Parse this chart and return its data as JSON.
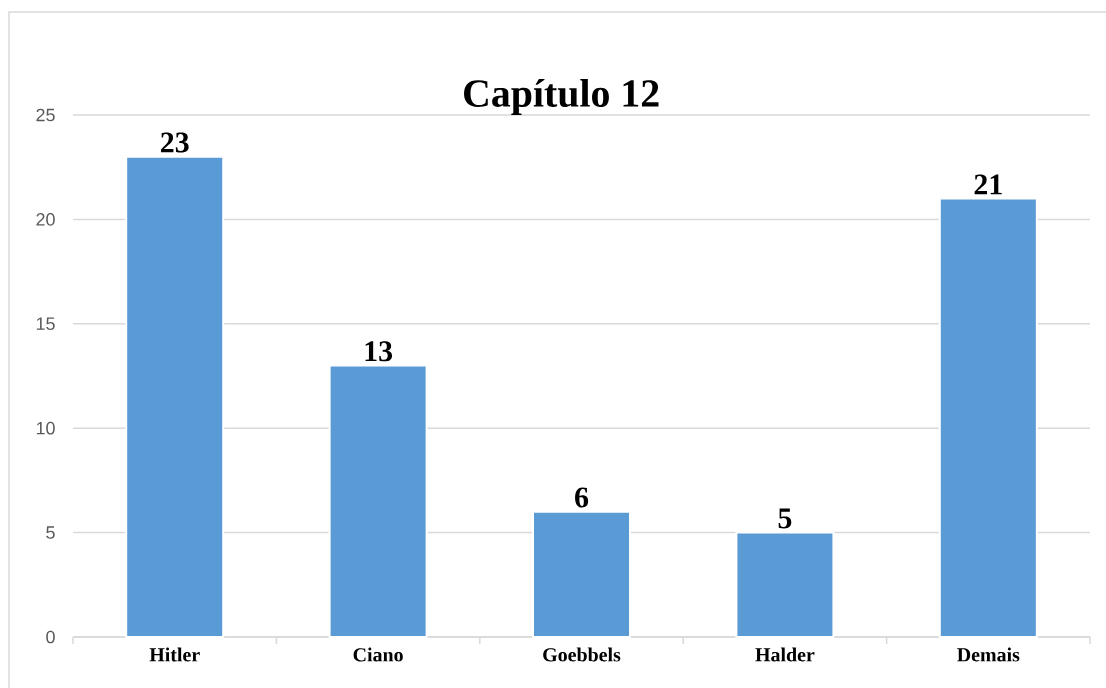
{
  "chart_data": {
    "type": "bar",
    "title": "Capítulo 12",
    "categories": [
      "Hitler",
      "Ciano",
      "Goebbels",
      "Halder",
      "Demais"
    ],
    "values": [
      23,
      13,
      6,
      5,
      21
    ],
    "color": "#5b9bd5",
    "ylim": [
      0,
      25
    ],
    "yticks": [
      0,
      5,
      10,
      15,
      20,
      25
    ],
    "grid": "y",
    "data_labels": true
  }
}
